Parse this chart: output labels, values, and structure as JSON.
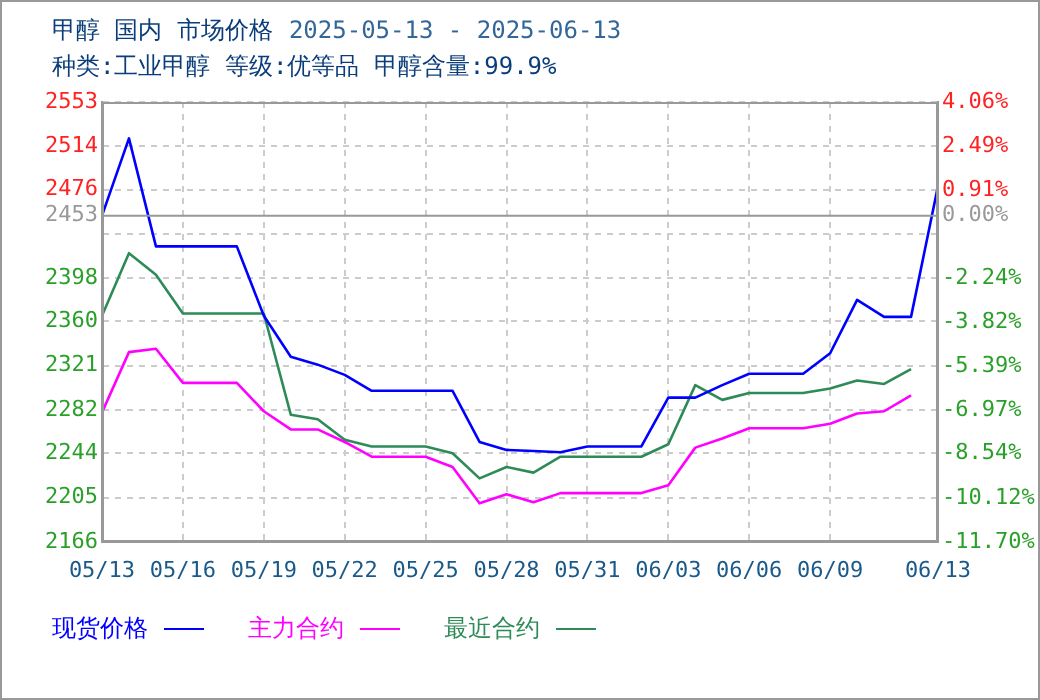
{
  "chart_data": {
    "type": "line",
    "title": "甲醇  国内  市场价格",
    "subtitle": "2025-05-13 - 2025-06-13",
    "annotations": [
      "种类:工业甲醇  等级:优等品  甲醇含量:99.9%"
    ],
    "x": [
      "2025-05-13",
      "2025-05-14",
      "2025-05-15",
      "2025-05-16",
      "2025-05-17",
      "2025-05-18",
      "2025-05-19",
      "2025-05-20",
      "2025-05-21",
      "2025-05-22",
      "2025-05-23",
      "2025-05-24",
      "2025-05-25",
      "2025-05-26",
      "2025-05-27",
      "2025-05-28",
      "2025-05-29",
      "2025-05-30",
      "2025-05-31",
      "2025-06-01",
      "2025-06-02",
      "2025-06-03",
      "2025-06-04",
      "2025-06-05",
      "2025-06-06",
      "2025-06-07",
      "2025-06-08",
      "2025-06-09",
      "2025-06-10",
      "2025-06-11",
      "2025-06-12",
      "2025-06-13"
    ],
    "series": [
      {
        "name": "现货价格",
        "color": "#0000ff",
        "values": [
          2453,
          2521,
          2426,
          2426,
          2426,
          2426,
          2365,
          2329,
          2322,
          2313,
          2299,
          2299,
          2299,
          2299,
          2254,
          2247,
          2246,
          2245,
          2250,
          2250,
          2250,
          2293,
          2293,
          2304,
          2314,
          2314,
          2314,
          2332,
          2379,
          2364,
          2364,
          2479
        ]
      },
      {
        "name": "主力合约",
        "color": "#ff00ff",
        "values": [
          2280,
          2333,
          2336,
          2306,
          2306,
          2306,
          2281,
          2265,
          2265,
          2254,
          2241,
          2241,
          2241,
          2232,
          2200,
          2208,
          2201,
          2209,
          2209,
          2209,
          2209,
          2216,
          2249,
          2257,
          2266,
          2266,
          2266,
          2270,
          2279,
          2281,
          2295,
          null
        ]
      },
      {
        "name": "最近合约",
        "color": "#2e8b57",
        "values": [
          2365,
          2420,
          2401,
          2367,
          2367,
          2367,
          2367,
          2278,
          2274,
          2256,
          2250,
          2250,
          2250,
          2244,
          2222,
          2232,
          2227,
          2241,
          2241,
          2241,
          2241,
          2252,
          2304,
          2291,
          2297,
          2297,
          2297,
          2301,
          2308,
          2305,
          2318,
          null
        ]
      }
    ],
    "xlim": [
      "2025-05-13",
      "2025-06-13"
    ],
    "xticks": [
      {
        "value": "2025-05-13",
        "label": "05/13"
      },
      {
        "value": "2025-05-16",
        "label": "05/16"
      },
      {
        "value": "2025-05-19",
        "label": "05/19"
      },
      {
        "value": "2025-05-22",
        "label": "05/22"
      },
      {
        "value": "2025-05-25",
        "label": "05/25"
      },
      {
        "value": "2025-05-28",
        "label": "05/28"
      },
      {
        "value": "2025-05-31",
        "label": "05/31"
      },
      {
        "value": "2025-06-03",
        "label": "06/03"
      },
      {
        "value": "2025-06-06",
        "label": "06/06"
      },
      {
        "value": "2025-06-09",
        "label": "06/09"
      },
      {
        "value": "2025-06-13",
        "label": "06/13"
      }
    ],
    "ylim": [
      2166,
      2553
    ],
    "yticks": [
      2166,
      2205,
      2244,
      2282,
      2321,
      2360,
      2398,
      {
        "value": 2437,
        "label": null
      },
      2476,
      2514,
      2553
    ],
    "y2lim": [
      -11.7,
      4.06
    ],
    "y2ticks": [
      {
        "value": -11.7,
        "label": "-11.70%"
      },
      {
        "value": -10.12,
        "label": "-10.12%"
      },
      {
        "value": -8.54,
        "label": "-8.54%"
      },
      {
        "value": -6.97,
        "label": "-6.97%"
      },
      {
        "value": -5.39,
        "label": "-5.39%"
      },
      {
        "value": -3.82,
        "label": "-3.82%"
      },
      {
        "value": -2.24,
        "label": "-2.24%"
      },
      {
        "value": 0,
        "label": "0.00%"
      },
      {
        "value": 0.91,
        "label": "0.91%"
      },
      {
        "value": 2.49,
        "label": "2.49%"
      },
      {
        "value": 4.06,
        "label": "4.06%"
      }
    ],
    "ref_lines": [
      {
        "axis": "y",
        "value": 2453,
        "label": "2453",
        "color": "#999999"
      }
    ],
    "grid": true,
    "legend": "bottom",
    "marker": "none",
    "line_style": "solid"
  }
}
